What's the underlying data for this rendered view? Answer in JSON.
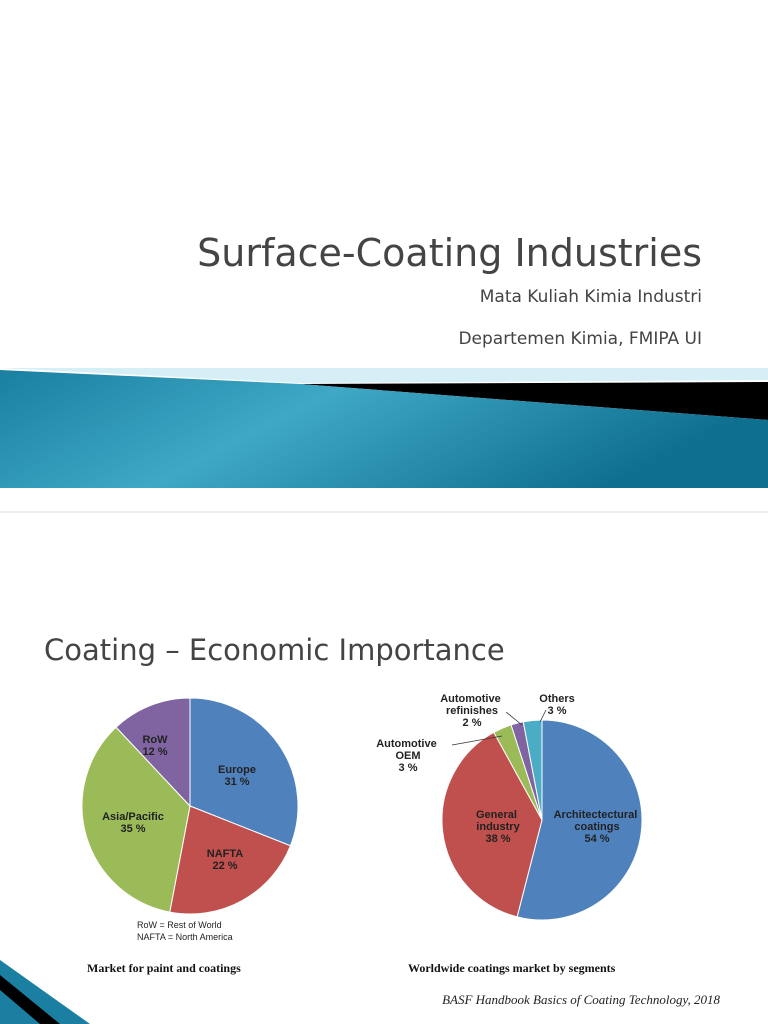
{
  "slide1": {
    "title": "Surface-Coating Industries",
    "subtitle": "Mata Kuliah Kimia Industri",
    "department": "Departemen Kimia, FMIPA UI"
  },
  "slide2": {
    "title": "Coating – Economic Importance",
    "charts": [
      {
        "type": "pie",
        "categories": [
          "Europe",
          "NAFTA",
          "Asia/Pacific",
          "RoW"
        ],
        "values": [
          31,
          22,
          35,
          12
        ],
        "value_labels": [
          "31 %",
          "22 %",
          "35 %",
          "12 %"
        ],
        "colors": [
          "#4f81bd",
          "#c0504d",
          "#9bbb59",
          "#8064a2"
        ],
        "notes": [
          "RoW = Rest of World",
          "NAFTA = North America"
        ],
        "caption": "Market for paint and coatings"
      },
      {
        "type": "pie",
        "categories": [
          "Architectectural coatings",
          "General industry",
          "Automotive OEM",
          "Automotive refinishes",
          "Others"
        ],
        "values": [
          54,
          38,
          3,
          2,
          3
        ],
        "value_labels": [
          "54 %",
          "38 %",
          "3 %",
          "2 %",
          "3 %"
        ],
        "colors": [
          "#4f81bd",
          "#c0504d",
          "#9bbb59",
          "#8064a2",
          "#4bacc6"
        ],
        "caption": "Worldwide coatings market by segments"
      }
    ],
    "source": "BASF Handbook Basics of Coating Technology, 2018"
  }
}
